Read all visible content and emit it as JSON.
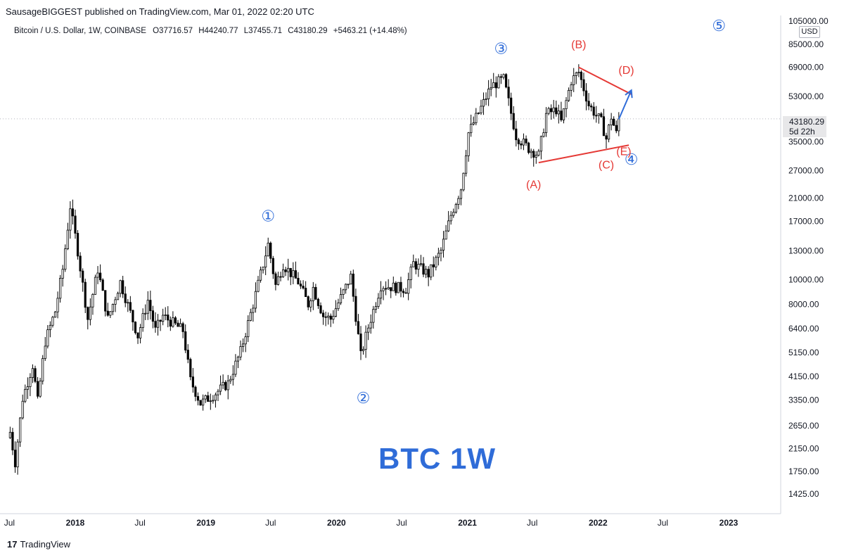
{
  "header": {
    "text": "SausageBIGGEST published on TradingView.com, Mar 01, 2022 02:20 UTC"
  },
  "legend": {
    "symbol": "Bitcoin / U.S. Dollar, 1W, COINBASE",
    "open": "O37716.57",
    "high": "H44240.77",
    "low": "L37455.71",
    "close": "C43180.29",
    "change": "+5463.21 (+14.48%)"
  },
  "price_label": {
    "value": "43180.29",
    "countdown": "5d 22h"
  },
  "currency": "USD",
  "big_title": "BTC 1W",
  "brand": {
    "logo": "17",
    "name": "TradingView"
  },
  "colors": {
    "wave_blue": "#2f6cd8",
    "wave_red": "#e53935",
    "candle": "#000000",
    "axis_text": "#131722"
  },
  "chart_data": {
    "type": "candlestick",
    "title": "Bitcoin / U.S. Dollar, 1W, COINBASE",
    "scale": "log",
    "y_ticks": [
      "105000.00",
      "85000.00",
      "69000.00",
      "53000.00",
      "43180.29",
      "35000.00",
      "27000.00",
      "21000.00",
      "17000.00",
      "13000.00",
      "10000.00",
      "8000.00",
      "6400.00",
      "5150.00",
      "4150.00",
      "3350.00",
      "2650.00",
      "2150.00",
      "1750.00",
      "1425.00"
    ],
    "x_ticks": [
      "Jul",
      "2018",
      "Jul",
      "2019",
      "Jul",
      "2020",
      "Jul",
      "2021",
      "Jul",
      "2022",
      "Jul",
      "2023"
    ],
    "price_path": [
      {
        "date": "2017-07-03",
        "price": 2500
      },
      {
        "date": "2017-07-17",
        "price": 1900
      },
      {
        "date": "2017-08-07",
        "price": 3400
      },
      {
        "date": "2017-09-04",
        "price": 4600
      },
      {
        "date": "2017-09-18",
        "price": 3300
      },
      {
        "date": "2017-10-09",
        "price": 5700
      },
      {
        "date": "2017-11-06",
        "price": 7500
      },
      {
        "date": "2017-11-27",
        "price": 11000
      },
      {
        "date": "2017-12-18",
        "price": 19500
      },
      {
        "date": "2018-01-08",
        "price": 13000
      },
      {
        "date": "2018-02-05",
        "price": 7000
      },
      {
        "date": "2018-03-05",
        "price": 11000
      },
      {
        "date": "2018-04-02",
        "price": 7000
      },
      {
        "date": "2018-05-07",
        "price": 9800
      },
      {
        "date": "2018-06-25",
        "price": 6000
      },
      {
        "date": "2018-07-23",
        "price": 8300
      },
      {
        "date": "2018-08-13",
        "price": 6300
      },
      {
        "date": "2018-09-03",
        "price": 7200
      },
      {
        "date": "2018-10-29",
        "price": 6300
      },
      {
        "date": "2018-11-19",
        "price": 4000
      },
      {
        "date": "2018-12-17",
        "price": 3250
      },
      {
        "date": "2019-01-21",
        "price": 3500
      },
      {
        "date": "2019-03-04",
        "price": 3900
      },
      {
        "date": "2019-04-08",
        "price": 5200
      },
      {
        "date": "2019-05-13",
        "price": 8000
      },
      {
        "date": "2019-06-24",
        "price": 13800
      },
      {
        "date": "2019-07-15",
        "price": 9500
      },
      {
        "date": "2019-08-05",
        "price": 11500
      },
      {
        "date": "2019-09-16",
        "price": 9800
      },
      {
        "date": "2019-10-14",
        "price": 8000
      },
      {
        "date": "2019-10-28",
        "price": 9300
      },
      {
        "date": "2019-11-25",
        "price": 7200
      },
      {
        "date": "2019-12-16",
        "price": 7000
      },
      {
        "date": "2020-01-13",
        "price": 8500
      },
      {
        "date": "2020-02-10",
        "price": 10300
      },
      {
        "date": "2020-03-09",
        "price": 5000
      },
      {
        "date": "2020-03-30",
        "price": 6500
      },
      {
        "date": "2020-05-04",
        "price": 9500
      },
      {
        "date": "2020-07-13",
        "price": 9200
      },
      {
        "date": "2020-08-03",
        "price": 11600
      },
      {
        "date": "2020-09-14",
        "price": 10500
      },
      {
        "date": "2020-10-19",
        "price": 13000
      },
      {
        "date": "2020-11-16",
        "price": 18000
      },
      {
        "date": "2020-12-14",
        "price": 23000
      },
      {
        "date": "2021-01-04",
        "price": 38000
      },
      {
        "date": "2021-02-15",
        "price": 50000
      },
      {
        "date": "2021-03-08",
        "price": 58000
      },
      {
        "date": "2021-04-12",
        "price": 62000
      },
      {
        "date": "2021-05-17",
        "price": 37000
      },
      {
        "date": "2021-06-21",
        "price": 33000
      },
      {
        "date": "2021-07-19",
        "price": 31000
      },
      {
        "date": "2021-08-09",
        "price": 45000
      },
      {
        "date": "2021-09-06",
        "price": 47000
      },
      {
        "date": "2021-09-20",
        "price": 42000
      },
      {
        "date": "2021-10-18",
        "price": 61000
      },
      {
        "date": "2021-11-08",
        "price": 66000
      },
      {
        "date": "2021-12-06",
        "price": 49000
      },
      {
        "date": "2022-01-10",
        "price": 42000
      },
      {
        "date": "2022-01-24",
        "price": 36000
      },
      {
        "date": "2022-02-07",
        "price": 44000
      },
      {
        "date": "2022-02-21",
        "price": 37700
      },
      {
        "date": "2022-02-28",
        "price": 43180.29
      }
    ],
    "wave_labels": [
      {
        "text": "①",
        "date": "2019-06-24",
        "price": 17000,
        "color": "blue"
      },
      {
        "text": "②",
        "date": "2020-03-16",
        "price": 3250,
        "color": "blue"
      },
      {
        "text": "③",
        "date": "2021-04-05",
        "price": 78000,
        "color": "blue"
      },
      {
        "text": "④",
        "date": "2022-04-04",
        "price": 28500,
        "color": "blue"
      },
      {
        "text": "⑤",
        "date": "2022-12-05",
        "price": 96000,
        "color": "blue"
      },
      {
        "text": "(A)",
        "date": "2021-07-05",
        "price": 23000,
        "color": "red"
      },
      {
        "text": "(B)",
        "date": "2021-11-08",
        "price": 82000,
        "color": "red"
      },
      {
        "text": "(C)",
        "date": "2022-01-24",
        "price": 27500,
        "color": "red"
      },
      {
        "text": "(D)",
        "date": "2022-03-21",
        "price": 65000,
        "color": "red"
      },
      {
        "text": "(E)",
        "date": "2022-03-14",
        "price": 31000,
        "color": "red"
      }
    ],
    "trendlines": [
      {
        "color": "red",
        "from": {
          "date": "2021-07-19",
          "price": 29000
        },
        "to": {
          "date": "2022-03-28",
          "price": 34000
        }
      },
      {
        "color": "red",
        "from": {
          "date": "2021-11-08",
          "price": 69000
        },
        "to": {
          "date": "2022-04-04",
          "price": 54000
        }
      },
      {
        "color": "blue",
        "arrow": true,
        "from": {
          "date": "2022-02-28",
          "price": 43000
        },
        "to": {
          "date": "2022-04-04",
          "price": 56000
        }
      }
    ],
    "grid": false
  }
}
